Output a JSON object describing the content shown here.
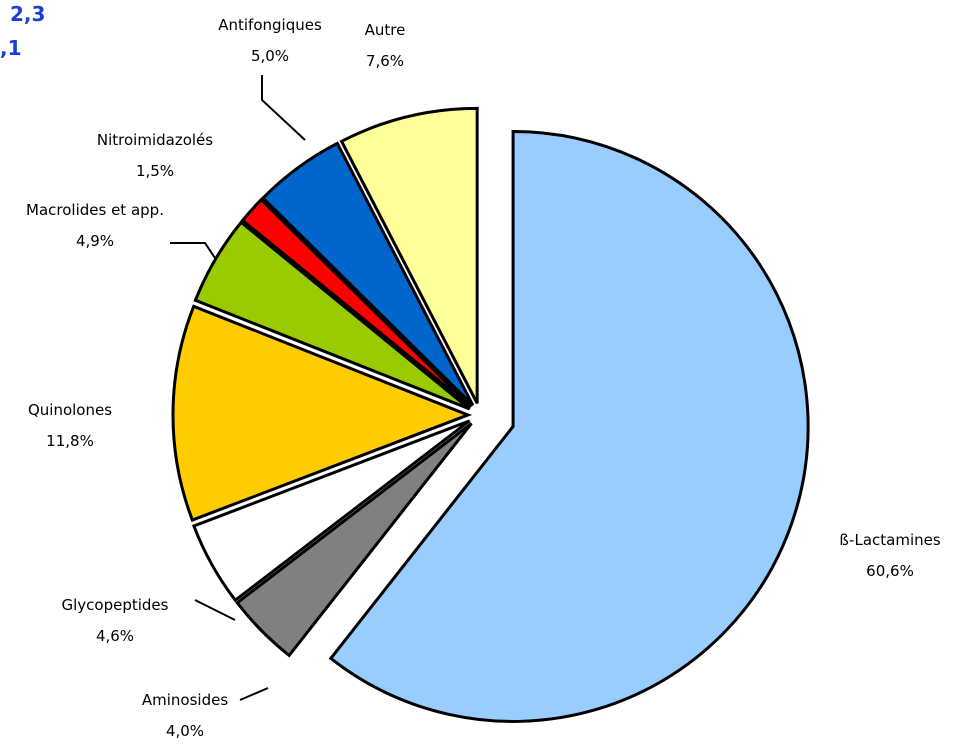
{
  "chart_data": {
    "type": "pie",
    "annotations": [
      "2,3",
      ",1"
    ],
    "categories": [
      "ß-Lactamines",
      "Aminosides",
      "Glycopeptides",
      "Quinolones",
      "Macrolides et app.",
      "Nitroimidazolés",
      "Antifongiques",
      "Autre"
    ],
    "values": [
      60.6,
      4.0,
      4.6,
      11.8,
      4.9,
      1.5,
      5.0,
      7.6
    ],
    "value_labels": [
      "60,6%",
      "4,0%",
      "4,6%",
      "11,8%",
      "4,9%",
      "1,5%",
      "5,0%",
      "7,6%"
    ],
    "colors": [
      "#99ccff",
      "#808080",
      "#ffffff",
      "#ffcc00",
      "#99cc00",
      "#ff0000",
      "#0066cc",
      "#ffff99"
    ]
  }
}
